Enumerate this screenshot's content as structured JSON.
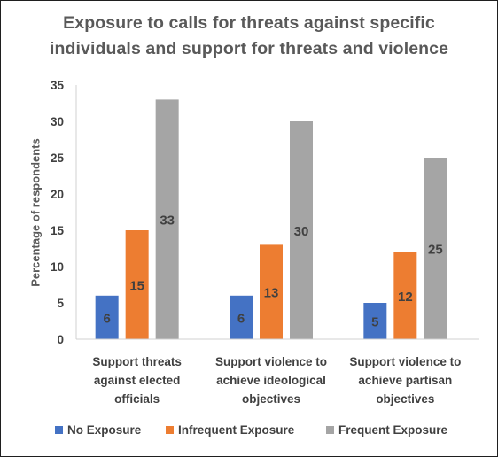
{
  "chart_data": {
    "type": "bar",
    "title_lines": [
      "Exposure to calls for threats against specific",
      "individuals and support for threats and violence"
    ],
    "xlabel": "",
    "ylabel": "Percentage of respondents",
    "ylim": [
      0,
      35
    ],
    "yticks": [
      0,
      5,
      10,
      15,
      20,
      25,
      30,
      35
    ],
    "grid": false,
    "legend_position": "bottom",
    "categories": [
      [
        "Support threats",
        "against elected",
        "officials"
      ],
      [
        "Support violence to",
        "achieve ideological",
        "objectives"
      ],
      [
        "Support violence to",
        "achieve partisan",
        "objectives"
      ]
    ],
    "series": [
      {
        "name": "No Exposure",
        "color": "#4472C4",
        "values": [
          6,
          6,
          5
        ]
      },
      {
        "name": "Infrequent Exposure",
        "color": "#ED7D31",
        "values": [
          15,
          13,
          12
        ]
      },
      {
        "name": "Frequent Exposure",
        "color": "#A5A5A5",
        "values": [
          33,
          30,
          25
        ]
      }
    ]
  }
}
